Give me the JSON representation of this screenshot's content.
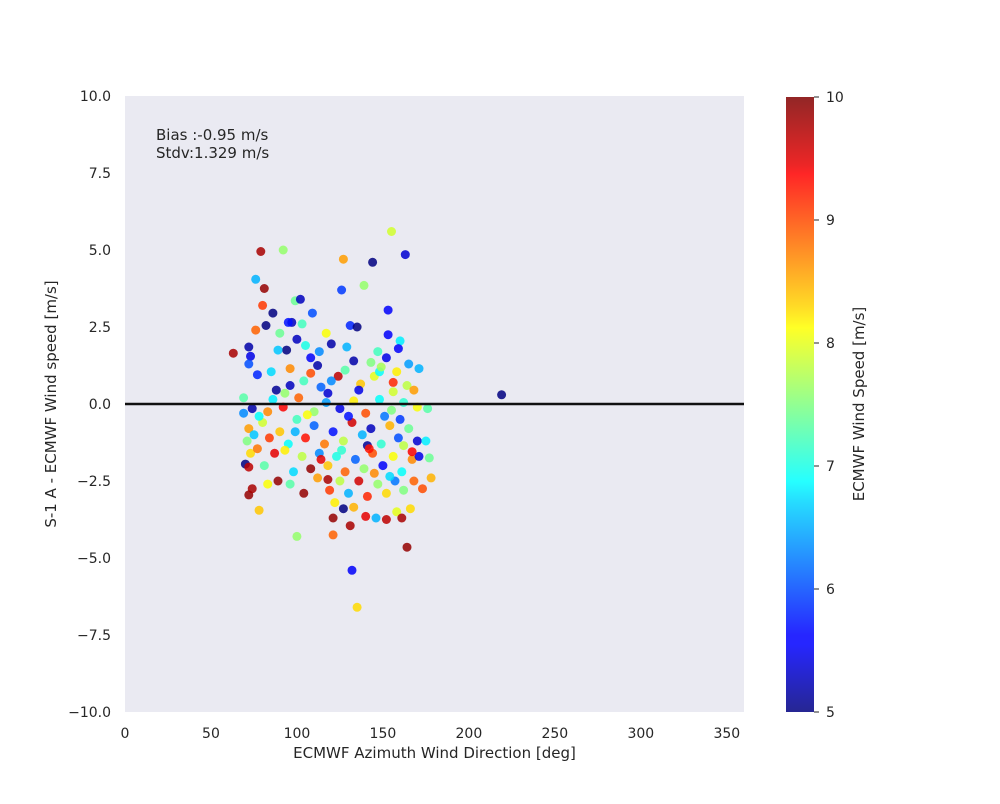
{
  "chart_data": {
    "type": "scatter",
    "xlabel": "ECMWF Azimuth Wind Direction [deg]",
    "ylabel": "S-1 A - ECMWF Wind speed [m/s]",
    "xlim": [
      0,
      360
    ],
    "ylim": [
      -10,
      10
    ],
    "x_ticks": [
      0,
      50,
      100,
      150,
      200,
      250,
      300,
      350
    ],
    "y_ticks": [
      -10.0,
      -7.5,
      -5.0,
      -2.5,
      0.0,
      2.5,
      5.0,
      7.5,
      10.0
    ],
    "x_tick_labels": [
      "0",
      "50",
      "100",
      "150",
      "200",
      "250",
      "300",
      "350"
    ],
    "y_tick_labels": [
      "−10.0",
      "−7.5",
      "−5.0",
      "−2.5",
      "0.0",
      "2.5",
      "5.0",
      "7.5",
      "10.0"
    ],
    "grid": false,
    "background": "#eaeaf2",
    "reference_line_y": 0,
    "annotations": [
      "Bias :-0.95 m/s",
      "Stdv:1.329 m/s"
    ],
    "colorbar": {
      "label": "ECMWF Wind Speed [m/s]",
      "range": [
        5,
        10
      ],
      "ticks": [
        5,
        6,
        7,
        8,
        9,
        10
      ],
      "tick_labels": [
        "5",
        "6",
        "7",
        "8",
        "9",
        "10"
      ],
      "colormap": "jet"
    },
    "points": [
      [
        79,
        4.95,
        9.8
      ],
      [
        92,
        5.0,
        7.6
      ],
      [
        155,
        5.6,
        7.9
      ],
      [
        127,
        4.7,
        8.6
      ],
      [
        144,
        4.6,
        5.0
      ],
      [
        163,
        4.85,
        5.4
      ],
      [
        76,
        4.05,
        6.5
      ],
      [
        81,
        3.75,
        9.9
      ],
      [
        80,
        3.2,
        9.1
      ],
      [
        99,
        3.35,
        7.4
      ],
      [
        102,
        3.4,
        5.3
      ],
      [
        126,
        3.7,
        5.9
      ],
      [
        139,
        3.85,
        7.6
      ],
      [
        153,
        3.05,
        5.6
      ],
      [
        86,
        2.95,
        5.0
      ],
      [
        109,
        2.95,
        6.0
      ],
      [
        97,
        2.65,
        5.3
      ],
      [
        103,
        2.6,
        7.2
      ],
      [
        131,
        2.55,
        5.8
      ],
      [
        135,
        2.5,
        5.0
      ],
      [
        76,
        2.4,
        8.9
      ],
      [
        90,
        2.3,
        7.4
      ],
      [
        117,
        2.3,
        8.1
      ],
      [
        153,
        2.25,
        5.6
      ],
      [
        82,
        2.55,
        5.0
      ],
      [
        160,
        2.05,
        6.8
      ],
      [
        63,
        1.65,
        9.8
      ],
      [
        72,
        1.85,
        5.2
      ],
      [
        73,
        1.55,
        5.5
      ],
      [
        72,
        1.3,
        6.0
      ],
      [
        94,
        1.75,
        5.0
      ],
      [
        108,
        1.5,
        5.6
      ],
      [
        113,
        1.7,
        6.3
      ],
      [
        120,
        1.95,
        5.2
      ],
      [
        129,
        1.85,
        6.5
      ],
      [
        147,
        1.7,
        7.2
      ],
      [
        152,
        1.5,
        5.5
      ],
      [
        159,
        1.8,
        5.6
      ],
      [
        165,
        1.3,
        6.4
      ],
      [
        171,
        1.15,
        6.5
      ],
      [
        77,
        0.95,
        5.8
      ],
      [
        85,
        1.05,
        6.7
      ],
      [
        96,
        0.6,
        5.3
      ],
      [
        104,
        0.75,
        7.2
      ],
      [
        114,
        0.55,
        6.1
      ],
      [
        124,
        0.9,
        9.7
      ],
      [
        137,
        0.65,
        8.4
      ],
      [
        145,
        0.9,
        8.0
      ],
      [
        156,
        0.7,
        9.2
      ],
      [
        164,
        0.6,
        7.8
      ],
      [
        168,
        0.45,
        8.6
      ],
      [
        69,
        0.2,
        7.3
      ],
      [
        69,
        -0.3,
        6.3
      ],
      [
        74,
        -0.15,
        5.2
      ],
      [
        86,
        0.15,
        6.8
      ],
      [
        92,
        -0.1,
        9.4
      ],
      [
        101,
        0.2,
        8.9
      ],
      [
        110,
        -0.25,
        7.6
      ],
      [
        117,
        0.05,
        6.4
      ],
      [
        125,
        -0.15,
        5.5
      ],
      [
        133,
        0.1,
        8.2
      ],
      [
        140,
        -0.3,
        9.0
      ],
      [
        148,
        0.15,
        6.9
      ],
      [
        155,
        -0.2,
        7.5
      ],
      [
        162,
        0.05,
        7.1
      ],
      [
        170,
        -0.1,
        8.1
      ],
      [
        176,
        -0.15,
        7.3
      ],
      [
        219,
        0.3,
        5.0
      ],
      [
        72,
        -0.8,
        8.6
      ],
      [
        71,
        -1.2,
        7.5
      ],
      [
        73,
        -1.6,
        8.3
      ],
      [
        75,
        -1.0,
        6.6
      ],
      [
        80,
        -0.6,
        7.9
      ],
      [
        84,
        -1.1,
        9.1
      ],
      [
        90,
        -0.9,
        8.4
      ],
      [
        95,
        -1.3,
        6.9
      ],
      [
        100,
        -0.5,
        7.2
      ],
      [
        105,
        -1.1,
        9.3
      ],
      [
        110,
        -0.7,
        6.1
      ],
      [
        116,
        -1.3,
        8.8
      ],
      [
        121,
        -0.9,
        5.7
      ],
      [
        127,
        -1.2,
        7.8
      ],
      [
        132,
        -0.6,
        9.6
      ],
      [
        138,
        -1.0,
        6.5
      ],
      [
        143,
        -0.8,
        5.3
      ],
      [
        149,
        -1.3,
        7.1
      ],
      [
        154,
        -0.7,
        8.5
      ],
      [
        159,
        -1.1,
        6.0
      ],
      [
        165,
        -0.8,
        7.4
      ],
      [
        170,
        -1.2,
        5.4
      ],
      [
        175,
        -1.2,
        6.8
      ],
      [
        70,
        -1.95,
        5.0
      ],
      [
        72,
        -2.05,
        9.7
      ],
      [
        77,
        -1.45,
        8.8
      ],
      [
        81,
        -2.0,
        7.3
      ],
      [
        87,
        -1.6,
        9.5
      ],
      [
        93,
        -1.5,
        8.2
      ],
      [
        98,
        -2.2,
        6.7
      ],
      [
        103,
        -1.7,
        7.8
      ],
      [
        108,
        -2.1,
        9.9
      ],
      [
        113,
        -1.6,
        6.3
      ],
      [
        118,
        -2.0,
        8.4
      ],
      [
        123,
        -1.7,
        7.0
      ],
      [
        128,
        -2.2,
        8.9
      ],
      [
        134,
        -1.8,
        6.1
      ],
      [
        139,
        -2.1,
        7.6
      ],
      [
        144,
        -1.6,
        9.0
      ],
      [
        150,
        -2.0,
        5.6
      ],
      [
        156,
        -1.7,
        8.1
      ],
      [
        161,
        -2.2,
        6.9
      ],
      [
        167,
        -1.8,
        8.7
      ],
      [
        171,
        -1.7,
        5.5
      ],
      [
        177,
        -1.75,
        7.4
      ],
      [
        72,
        -2.95,
        9.9
      ],
      [
        74,
        -2.75,
        9.8
      ],
      [
        83,
        -2.6,
        8.1
      ],
      [
        89,
        -2.5,
        9.9
      ],
      [
        96,
        -2.6,
        7.3
      ],
      [
        104,
        -2.9,
        9.9
      ],
      [
        112,
        -2.4,
        8.6
      ],
      [
        119,
        -2.8,
        9.1
      ],
      [
        125,
        -2.5,
        7.8
      ],
      [
        130,
        -2.9,
        6.5
      ],
      [
        136,
        -2.5,
        9.6
      ],
      [
        141,
        -3.0,
        9.2
      ],
      [
        147,
        -2.6,
        7.6
      ],
      [
        152,
        -2.9,
        8.3
      ],
      [
        157,
        -2.5,
        6.2
      ],
      [
        162,
        -2.8,
        7.5
      ],
      [
        168,
        -2.5,
        8.9
      ],
      [
        173,
        -2.75,
        9.0
      ],
      [
        178,
        -2.4,
        8.5
      ],
      [
        78,
        -3.45,
        8.4
      ],
      [
        122,
        -3.2,
        8.2
      ],
      [
        127,
        -3.4,
        5.0
      ],
      [
        133,
        -3.35,
        8.5
      ],
      [
        140,
        -3.65,
        9.5
      ],
      [
        146,
        -3.7,
        6.5
      ],
      [
        152,
        -3.75,
        9.7
      ],
      [
        158,
        -3.5,
        8.0
      ],
      [
        161,
        -3.7,
        9.8
      ],
      [
        166,
        -3.4,
        8.3
      ],
      [
        121,
        -3.7,
        9.9
      ],
      [
        131,
        -3.95,
        9.8
      ],
      [
        100,
        -4.3,
        7.6
      ],
      [
        121,
        -4.25,
        8.9
      ],
      [
        164,
        -4.65,
        9.9
      ],
      [
        132,
        -5.4,
        5.6
      ],
      [
        135,
        -6.6,
        8.3
      ],
      [
        148,
        1.05,
        6.9
      ],
      [
        143,
        1.35,
        7.5
      ],
      [
        112,
        1.25,
        5.2
      ],
      [
        96,
        1.15,
        8.7
      ],
      [
        89,
        1.75,
        6.6
      ],
      [
        128,
        1.1,
        7.3
      ],
      [
        158,
        1.05,
        8.2
      ],
      [
        118,
        0.35,
        5.4
      ],
      [
        106,
        -0.35,
        8.1
      ],
      [
        99,
        -0.9,
        6.5
      ],
      [
        141,
        -1.35,
        5.1
      ],
      [
        130,
        -0.4,
        5.7
      ],
      [
        151,
        -0.4,
        6.2
      ],
      [
        160,
        -0.5,
        5.9
      ],
      [
        88,
        0.45,
        5.1
      ],
      [
        93,
        0.35,
        7.6
      ],
      [
        167,
        -1.55,
        9.4
      ],
      [
        78,
        -0.4,
        6.9
      ],
      [
        83,
        -0.25,
        8.7
      ],
      [
        118,
        -2.45,
        9.8
      ],
      [
        145,
        -2.25,
        8.7
      ],
      [
        154,
        -2.35,
        6.7
      ],
      [
        114,
        -1.8,
        9.5
      ],
      [
        136,
        0.45,
        5.5
      ],
      [
        120,
        0.75,
        6.3
      ],
      [
        108,
        1.0,
        9.0
      ],
      [
        162,
        -1.35,
        7.8
      ],
      [
        100,
        2.1,
        5.3
      ],
      [
        95,
        2.65,
        5.7
      ],
      [
        105,
        1.9,
        7.0
      ],
      [
        133,
        1.4,
        5.2
      ],
      [
        149,
        1.2,
        7.7
      ],
      [
        156,
        0.4,
        7.9
      ],
      [
        142,
        -1.45,
        9.3
      ],
      [
        126,
        -1.5,
        7.1
      ]
    ]
  }
}
